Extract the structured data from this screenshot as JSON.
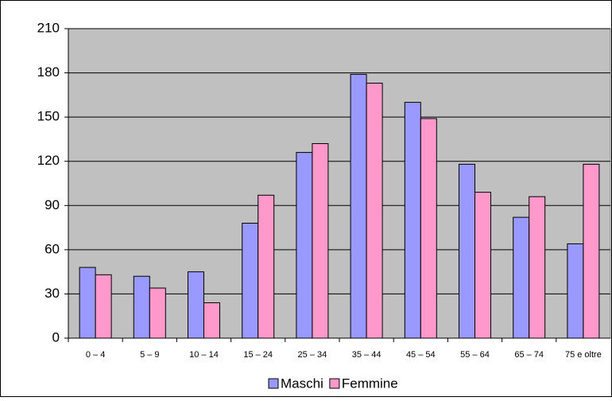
{
  "chart_data": {
    "type": "bar",
    "categories": [
      "0 – 4",
      "5 – 9",
      "10 – 14",
      "15 – 24",
      "25 – 34",
      "35 – 44",
      "45 – 54",
      "55 – 64",
      "65 – 74",
      "75 e oltre"
    ],
    "series": [
      {
        "name": "Maschi",
        "color": "#9999ff",
        "values": [
          48,
          42,
          45,
          78,
          126,
          179,
          160,
          118,
          82,
          64
        ]
      },
      {
        "name": "Femmine",
        "color": "#ff99cc",
        "values": [
          43,
          34,
          24,
          97,
          132,
          173,
          149,
          99,
          96,
          118
        ]
      }
    ],
    "ylim": [
      0,
      210
    ],
    "yticks": [
      0,
      30,
      60,
      90,
      120,
      150,
      180,
      210
    ],
    "grid": true,
    "legend": "bottom"
  }
}
